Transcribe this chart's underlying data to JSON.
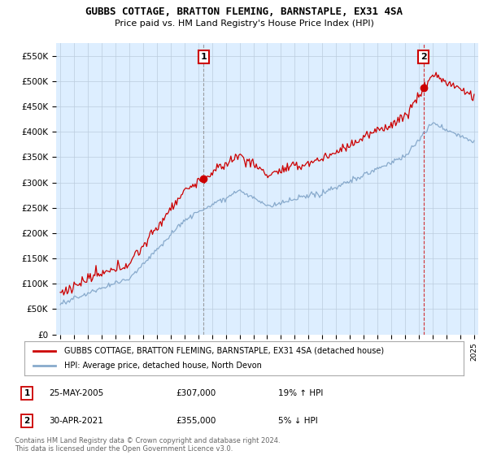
{
  "title": "GUBBS COTTAGE, BRATTON FLEMING, BARNSTAPLE, EX31 4SA",
  "subtitle": "Price paid vs. HM Land Registry's House Price Index (HPI)",
  "ylabel_ticks": [
    "£0",
    "£50K",
    "£100K",
    "£150K",
    "£200K",
    "£250K",
    "£300K",
    "£350K",
    "£400K",
    "£450K",
    "£500K",
    "£550K"
  ],
  "ytick_values": [
    0,
    50000,
    100000,
    150000,
    200000,
    250000,
    300000,
    350000,
    400000,
    450000,
    500000,
    550000
  ],
  "ylim": [
    0,
    575000
  ],
  "x_start_year": 1995,
  "x_end_year": 2025,
  "sale1_year": 2005.39,
  "sale1_price": 307000,
  "sale1_date": "25-MAY-2005",
  "sale1_hpi_pct": "19% ↑ HPI",
  "sale2_year": 2021.33,
  "sale2_price": 355000,
  "sale2_date": "30-APR-2021",
  "sale2_hpi_pct": "5% ↓ HPI",
  "red_color": "#cc0000",
  "blue_color": "#88aacc",
  "sale1_vline_color": "#888888",
  "sale2_vline_color": "#cc0000",
  "plot_bg_color": "#ddeeff",
  "legend_red_label": "GUBBS COTTAGE, BRATTON FLEMING, BARNSTAPLE, EX31 4SA (detached house)",
  "legend_blue_label": "HPI: Average price, detached house, North Devon",
  "footnote": "Contains HM Land Registry data © Crown copyright and database right 2024.\nThis data is licensed under the Open Government Licence v3.0.",
  "background_color": "#ffffff",
  "grid_color": "#bbccdd"
}
